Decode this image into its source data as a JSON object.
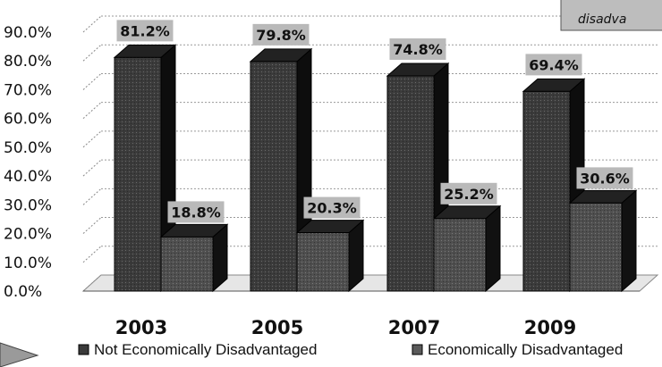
{
  "chart_data": {
    "type": "bar",
    "categories": [
      "2003",
      "2005",
      "2007",
      "2009"
    ],
    "series": [
      {
        "name": "Not Economically Disadvantaged",
        "values": [
          81.2,
          79.8,
          74.8,
          69.4
        ],
        "labels": [
          "81.2%",
          "79.8%",
          "74.8%",
          "69.4%"
        ]
      },
      {
        "name": "Economically Disadvantaged",
        "values": [
          18.8,
          20.3,
          25.2,
          30.6
        ],
        "labels": [
          "18.8%",
          "20.3%",
          "25.2%",
          "30.6%"
        ]
      }
    ],
    "yticks": [
      "0.0%",
      "10.0%",
      "20.0%",
      "30.0%",
      "40.0%",
      "50.0%",
      "60.0%",
      "70.0%",
      "80.0%",
      "90.0%"
    ],
    "ylim": [
      0,
      90
    ],
    "grid": true,
    "three_d": true,
    "legend_position": "bottom",
    "colors": {
      "series1": "#3a3a3a",
      "series2": "#4d4d4d",
      "label_bg": "#b9b9b9"
    }
  },
  "annotation": {
    "text": "disadva"
  }
}
